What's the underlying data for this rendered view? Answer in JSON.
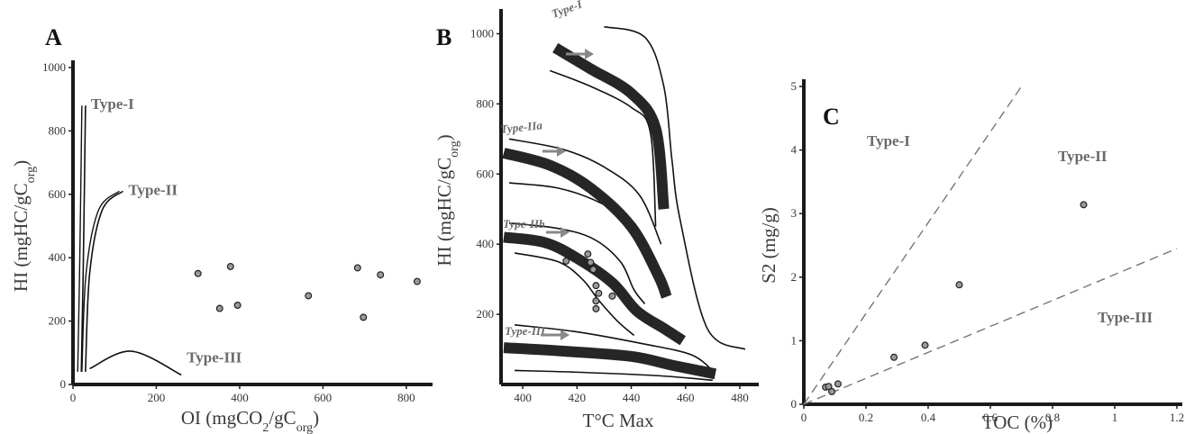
{
  "figure": {
    "background": "#ffffff",
    "axis_color": "#1a1a1a",
    "point_fill": "#9a9a9a",
    "arrow_color": "#888888"
  },
  "chart_data": [
    {
      "panel": "A",
      "type": "scatter",
      "title": "",
      "xlabel": "OI (mgCO2/gCorg)",
      "ylabel": "HI (mgHC/gCorg)",
      "xlim": [
        0,
        850
      ],
      "ylim": [
        0,
        1000
      ],
      "xticks": [
        0,
        200,
        400,
        600,
        800
      ],
      "yticks": [
        0,
        200,
        400,
        600,
        800,
        1000
      ],
      "grid": false,
      "curves": [
        {
          "name": "Type-I",
          "points": [
            [
              20,
              40
            ],
            [
              25,
              400
            ],
            [
              30,
              880
            ]
          ]
        },
        {
          "name": "Type-II",
          "points": [
            [
              30,
              40
            ],
            [
              40,
              350
            ],
            [
              70,
              550
            ],
            [
              120,
              610
            ]
          ]
        },
        {
          "name": "Type-III",
          "points": [
            [
              40,
              50
            ],
            [
              140,
              105
            ],
            [
              260,
              30
            ]
          ]
        }
      ],
      "points": [
        [
          300,
          350
        ],
        [
          352,
          240
        ],
        [
          378,
          372
        ],
        [
          395,
          250
        ],
        [
          565,
          280
        ],
        [
          683,
          368
        ],
        [
          697,
          212
        ],
        [
          738,
          346
        ],
        [
          826,
          325
        ]
      ]
    },
    {
      "panel": "B",
      "type": "line",
      "title": "",
      "xlabel": "T°C Max",
      "ylabel": "HI (mgHC/gCorg)",
      "xlim": [
        392,
        485
      ],
      "ylim": [
        0,
        1050
      ],
      "xticks": [
        400,
        420,
        440,
        460,
        480
      ],
      "yticks": [
        200,
        400,
        600,
        800,
        1000
      ],
      "grid": false,
      "series": [
        {
          "name": "Type-I",
          "values": [
            [
              412,
              960
            ],
            [
              425,
              900
            ],
            [
              440,
              830
            ],
            [
              449,
              730
            ],
            [
              452,
              500
            ]
          ]
        },
        {
          "name": "Type-IIa",
          "values": [
            [
              393,
              660
            ],
            [
              410,
              625
            ],
            [
              425,
              560
            ],
            [
              440,
              450
            ],
            [
              450,
              310
            ],
            [
              453,
              250
            ]
          ]
        },
        {
          "name": "Type-IIb",
          "values": [
            [
              393,
              420
            ],
            [
              408,
              405
            ],
            [
              420,
              360
            ],
            [
              433,
              290
            ],
            [
              442,
              210
            ],
            [
              452,
              160
            ],
            [
              459,
              125
            ]
          ]
        },
        {
          "name": "Type-III",
          "values": [
            [
              393,
              105
            ],
            [
              415,
              95
            ],
            [
              440,
              80
            ],
            [
              455,
              55
            ],
            [
              471,
              30
            ]
          ]
        }
      ],
      "points": [
        [
          416,
          352
        ],
        [
          424,
          372
        ],
        [
          425,
          348
        ],
        [
          426,
          328
        ],
        [
          427,
          282
        ],
        [
          428,
          260
        ],
        [
          427,
          238
        ],
        [
          427,
          216
        ],
        [
          433,
          252
        ]
      ]
    },
    {
      "panel": "C",
      "type": "scatter",
      "title": "",
      "xlabel": "TOC (%)",
      "ylabel": "S2 (mg/g)",
      "xlim": [
        0,
        1.2
      ],
      "ylim": [
        0,
        5
      ],
      "xticks": [
        0,
        0.2,
        0.4,
        0.6,
        0.8,
        1,
        1.2
      ],
      "yticks": [
        0,
        1,
        2,
        3,
        4,
        5
      ],
      "grid": false,
      "regions": [
        "Type-I",
        "Type-II",
        "Type-III"
      ],
      "points": [
        [
          0.07,
          0.27
        ],
        [
          0.08,
          0.28
        ],
        [
          0.09,
          0.2
        ],
        [
          0.11,
          0.32
        ],
        [
          0.29,
          0.74
        ],
        [
          0.39,
          0.93
        ],
        [
          0.5,
          1.88
        ],
        [
          0.9,
          3.14
        ]
      ]
    }
  ]
}
